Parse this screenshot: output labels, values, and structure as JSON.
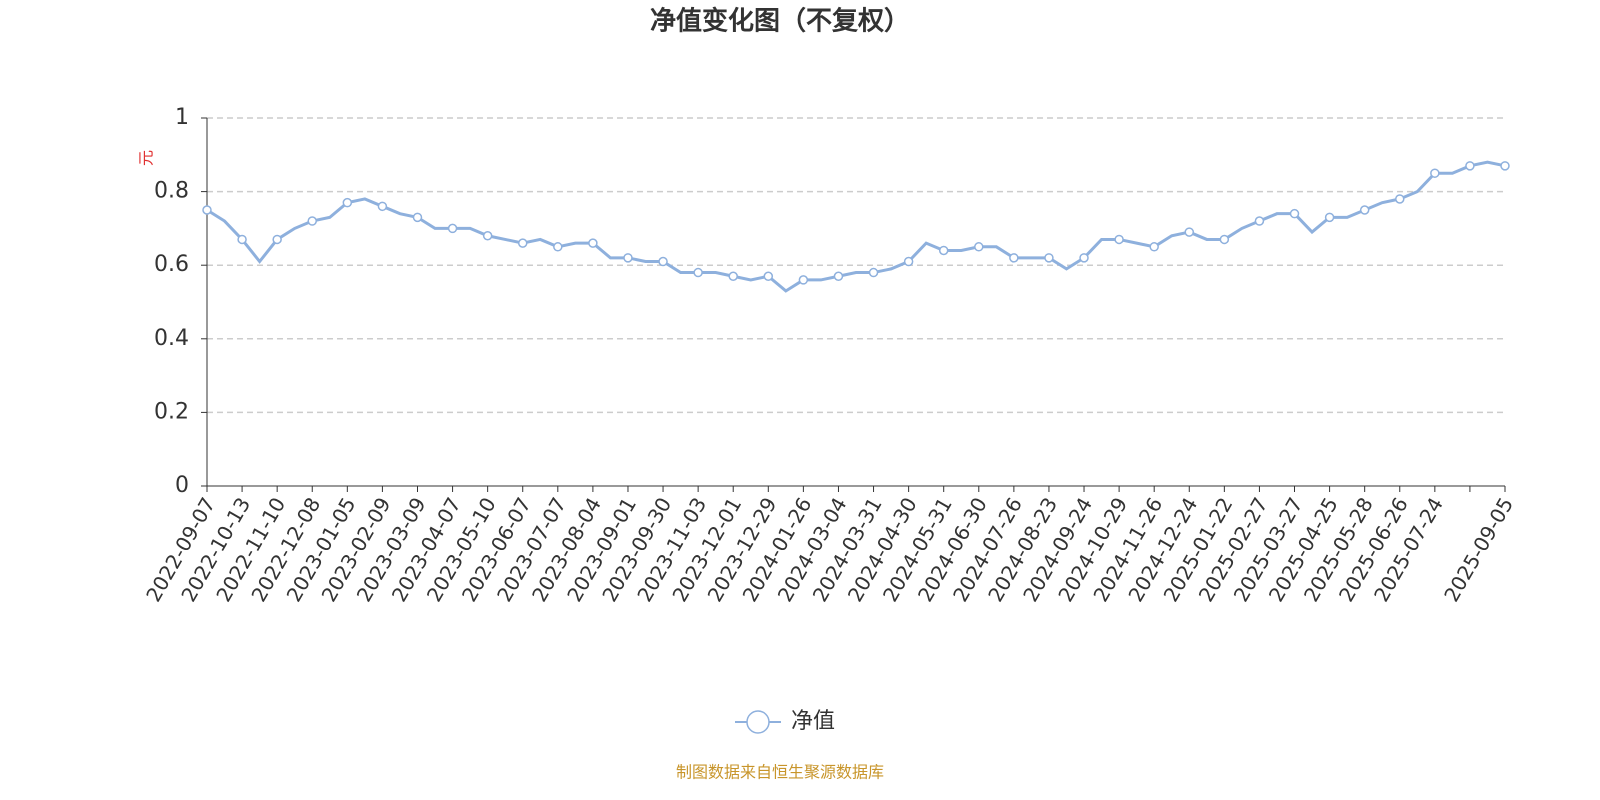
{
  "chart_data": {
    "type": "line",
    "title": "净值变化图（不复权）",
    "y_label": "元",
    "categories": [
      "2022-09-07",
      null,
      "2022-10-13",
      null,
      "2022-11-10",
      null,
      "2022-12-08",
      null,
      "2023-01-05",
      null,
      "2023-02-09",
      null,
      "2023-03-09",
      null,
      "2023-04-07",
      null,
      "2023-05-10",
      null,
      "2023-06-07",
      null,
      "2023-07-07",
      null,
      "2023-08-04",
      null,
      "2023-09-01",
      null,
      "2023-09-30",
      null,
      "2023-11-03",
      null,
      "2023-12-01",
      null,
      "2023-12-29",
      null,
      "2024-01-26",
      null,
      "2024-03-04",
      null,
      "2024-03-31",
      null,
      "2024-04-30",
      null,
      "2024-05-31",
      null,
      "2024-06-30",
      null,
      "2024-07-26",
      null,
      "2024-08-23",
      null,
      "2024-09-24",
      null,
      "2024-10-29",
      null,
      "2024-11-26",
      null,
      "2024-12-24",
      null,
      "2025-01-22",
      null,
      "2025-02-27",
      null,
      "2025-03-27",
      null,
      "2025-04-25",
      null,
      "2025-05-28",
      null,
      "2025-06-26",
      null,
      "2025-07-24",
      null,
      null,
      null,
      "2025-09-05"
    ],
    "series": [
      {
        "name": "净值",
        "color": "#8eb0dd",
        "values": [
          0.75,
          0.72,
          0.67,
          0.61,
          0.67,
          0.7,
          0.72,
          0.73,
          0.77,
          0.78,
          0.76,
          0.74,
          0.73,
          0.7,
          0.7,
          0.7,
          0.68,
          0.67,
          0.66,
          0.67,
          0.65,
          0.66,
          0.66,
          0.62,
          0.62,
          0.61,
          0.61,
          0.58,
          0.58,
          0.58,
          0.57,
          0.56,
          0.57,
          0.53,
          0.56,
          0.56,
          0.57,
          0.58,
          0.58,
          0.59,
          0.61,
          0.66,
          0.64,
          0.64,
          0.65,
          0.65,
          0.62,
          0.62,
          0.62,
          0.59,
          0.62,
          0.67,
          0.67,
          0.66,
          0.65,
          0.68,
          0.69,
          0.67,
          0.67,
          0.7,
          0.72,
          0.74,
          0.74,
          0.69,
          0.73,
          0.73,
          0.75,
          0.77,
          0.78,
          0.8,
          0.85,
          0.85,
          0.87,
          0.88,
          0.87
        ]
      }
    ],
    "ylim": [
      0,
      1
    ],
    "yticks": [
      0,
      0.2,
      0.4,
      0.6,
      0.8,
      1
    ],
    "grid": true,
    "legend": "bottom",
    "source": "制图数据来自恒生聚源数据库"
  }
}
